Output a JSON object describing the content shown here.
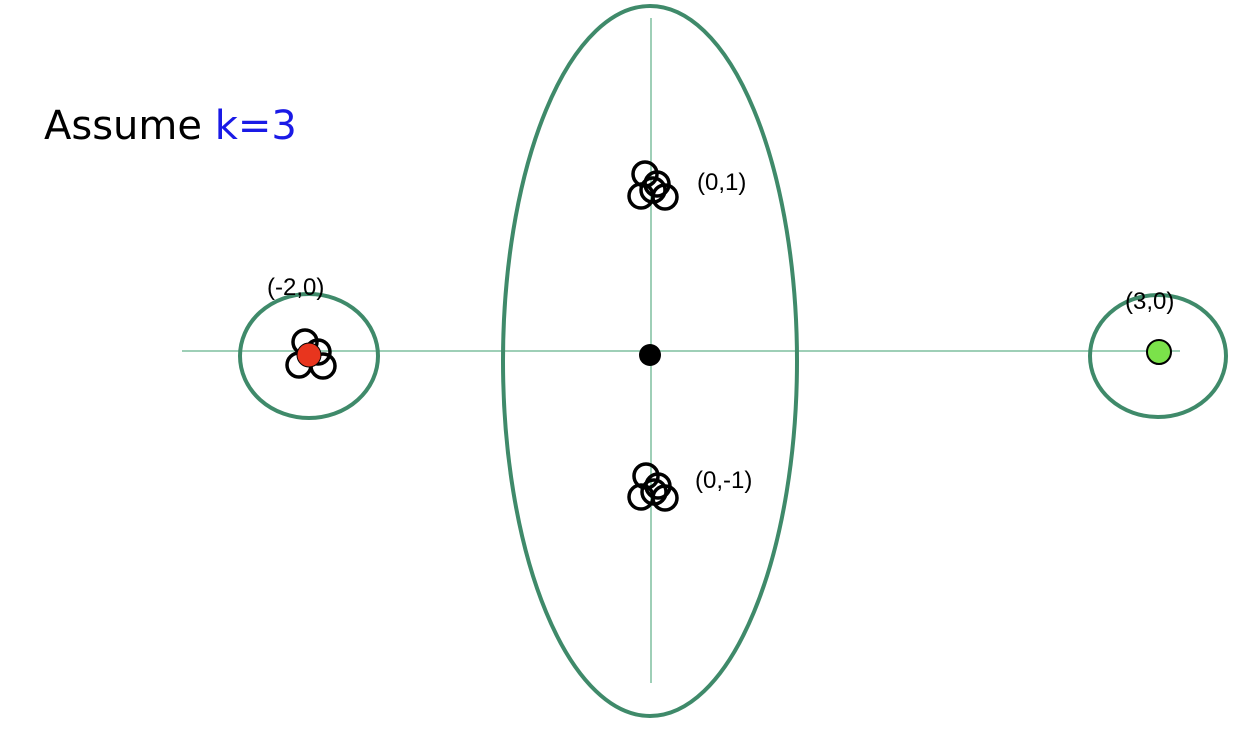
{
  "header": {
    "assume_prefix": "Assume ",
    "assume_value": "k=3"
  },
  "points": {
    "top": "(0,1)",
    "bottom": "(0,-1)",
    "left": "(-2,0)",
    "right": "(3,0)"
  },
  "colors": {
    "cluster_outline": "#3f8a6a",
    "axis": "#7fbf9f",
    "k_value": "#1a1ae6",
    "red_centroid": "#e8351e",
    "green_centroid": "#7be24a",
    "center_centroid": "#000000"
  }
}
